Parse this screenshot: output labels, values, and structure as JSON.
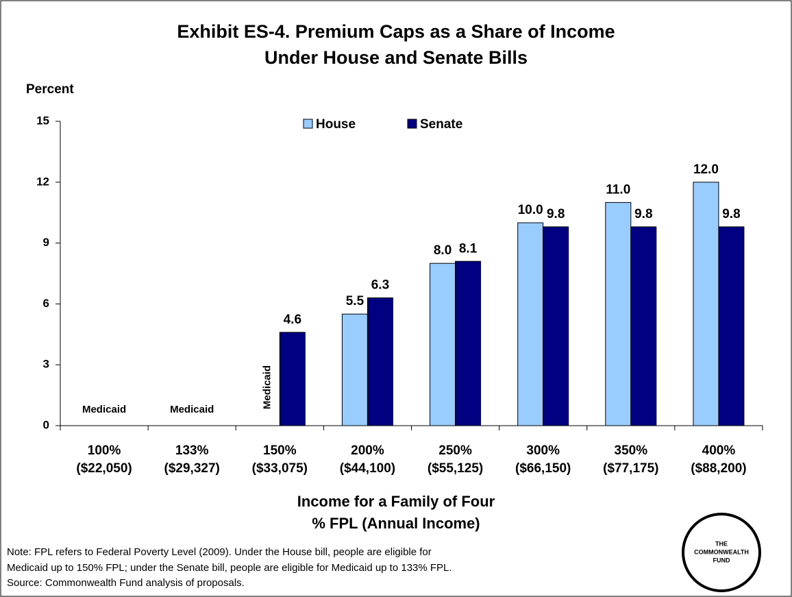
{
  "chart_data": {
    "type": "bar",
    "title": [
      "Exhibit ES-4. Premium Caps as a Share of Income",
      "Under House and Senate Bills"
    ],
    "ylabel": "Percent",
    "xlabel": [
      "Income for a Family of Four",
      "% FPL (Annual Income)"
    ],
    "categories": [
      "100% ($22,050)",
      "133% ($29,327)",
      "150% ($33,075)",
      "200% ($44,100)",
      "250% ($55,125)",
      "300% ($66,150)",
      "350% ($77,175)",
      "400% ($88,200)"
    ],
    "series": [
      {
        "name": "House",
        "color": "#99ccff",
        "values": [
          null,
          null,
          null,
          5.5,
          8.0,
          10.0,
          11.0,
          12.0
        ],
        "value_labels": [
          null,
          null,
          null,
          "5.5",
          "8.0",
          "10.0",
          "11.0",
          "12.0"
        ]
      },
      {
        "name": "Senate",
        "color": "#000080",
        "values": [
          null,
          null,
          4.6,
          6.3,
          8.1,
          9.8,
          9.8,
          9.8
        ],
        "value_labels": [
          null,
          null,
          "4.6",
          "6.3",
          "8.1",
          "9.8",
          "9.8",
          "9.8"
        ]
      }
    ],
    "annotations": [
      "Medicaid",
      "Medicaid",
      "Medicaid"
    ],
    "ylim": [
      0,
      15
    ],
    "yticks": [
      0,
      3,
      6,
      9,
      12,
      15
    ],
    "legend": "top"
  },
  "notes": [
    "Note: FPL refers to Federal Poverty Level (2009). Under the House bill, people are eligible for",
    "Medicaid up to 150% FPL; under the Senate bill, people are eligible for Medicaid up to 133% FPL.",
    "Source: Commonwealth Fund analysis of proposals."
  ],
  "logo": [
    "THE",
    "COMMONWEALTH",
    "FUND"
  ]
}
